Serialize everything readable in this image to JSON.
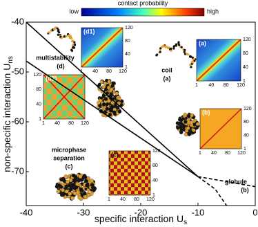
{
  "chart_data": {
    "type": "line",
    "xlabel": {
      "text": "specific interaction U",
      "sub": "s"
    },
    "ylabel": {
      "text": "non-specific interaction U",
      "sub": "ns"
    },
    "xlim": [
      -40,
      0
    ],
    "ylim": [
      -76.8,
      -40
    ],
    "xticks": [
      -40,
      -30,
      -20,
      -10,
      0
    ],
    "yticks": [
      -70,
      -60,
      -50,
      -40
    ],
    "colorbar": {
      "title": "contact probability",
      "low": "low",
      "high": "high"
    },
    "lines": [
      {
        "style": "solid",
        "x": [
          -40,
          -10
        ],
        "y": [
          -40,
          -71
        ]
      },
      {
        "style": "solid",
        "x": [
          -40,
          -10
        ],
        "y": [
          -47.8,
          -71
        ]
      },
      {
        "style": "dashed",
        "x": [
          -10,
          0
        ],
        "y": [
          -71,
          -73
        ]
      },
      {
        "style": "dashed",
        "x": [
          -10,
          -7,
          -5
        ],
        "y": [
          -71,
          -73.5,
          -76.8
        ]
      }
    ],
    "regions": [
      {
        "lines": [
          "multistability",
          "(d)"
        ]
      },
      {
        "lines": [
          "coil",
          "(a)"
        ]
      },
      {
        "lines": [
          "microphase",
          "separation",
          "(c)"
        ]
      },
      {
        "lines": [
          "globule",
          "(b)"
        ]
      }
    ],
    "insets": [
      {
        "label": "(d1)"
      },
      {
        "label": "(a)"
      },
      {
        "label": "(d2)"
      },
      {
        "label": "(b)"
      },
      {
        "label": "(c)"
      }
    ],
    "inset_ticks": [
      1,
      40,
      80,
      120
    ]
  }
}
